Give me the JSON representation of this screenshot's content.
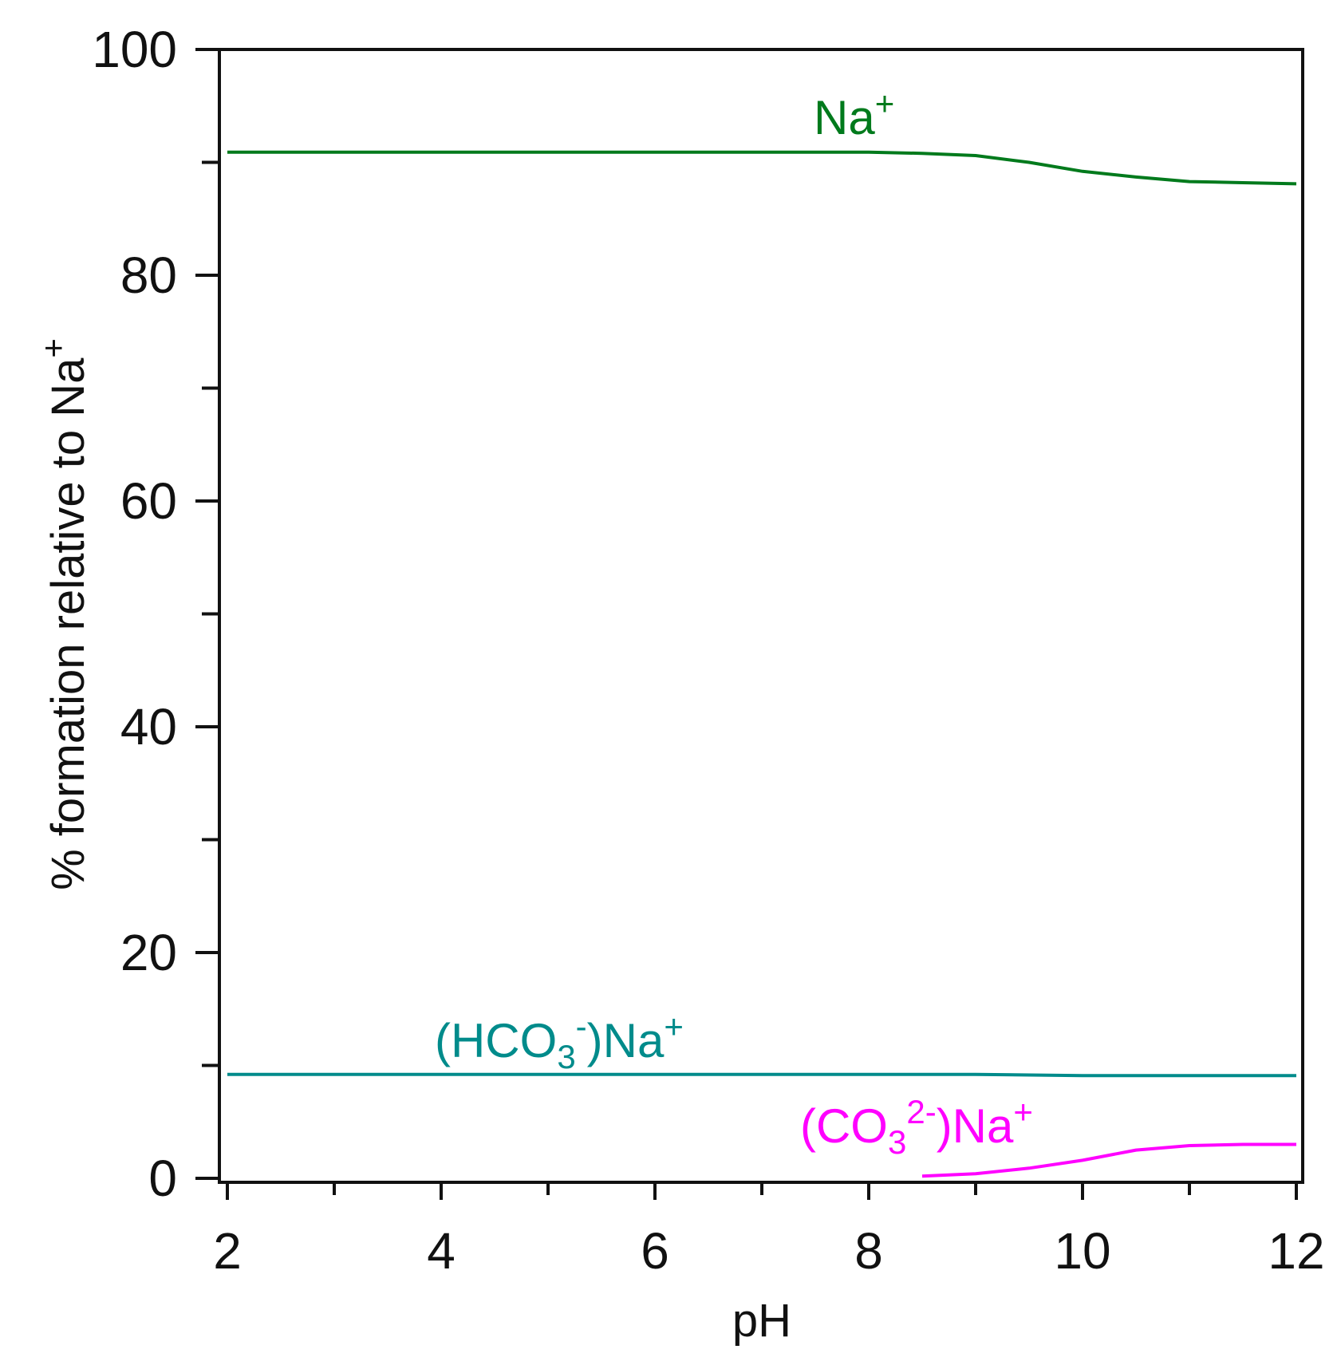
{
  "chart_data": {
    "type": "line",
    "title": "",
    "xlabel": "pH",
    "ylabel": {
      "text": "% formation relative to Na",
      "sup": "+"
    },
    "xlim": [
      2,
      12
    ],
    "ylim": [
      0,
      100
    ],
    "x_major_ticks": [
      2,
      4,
      6,
      8,
      10,
      12
    ],
    "x_tick_labels": [
      "2",
      "4",
      "6",
      "8",
      "10",
      "12"
    ],
    "x_minor_ticks": [
      3,
      5,
      7,
      9,
      11
    ],
    "y_major_ticks": [
      0,
      20,
      40,
      60,
      80,
      100
    ],
    "y_tick_labels": [
      "0",
      "20",
      "40",
      "60",
      "80",
      "100"
    ],
    "y_minor_ticks": [
      10,
      30,
      50,
      70,
      90
    ],
    "grid": false,
    "legend": "none (series labelled inline)",
    "series": [
      {
        "name": "Na+",
        "label": {
          "parts": [
            {
              "t": "Na"
            },
            {
              "t": "+",
              "sup": true
            }
          ]
        },
        "color": "#007a1c",
        "x": [
          2,
          3,
          4,
          5,
          6,
          7,
          7.5,
          8,
          8.5,
          9,
          9.5,
          10,
          10.5,
          11,
          11.5,
          12
        ],
        "y": [
          90.9,
          90.9,
          90.9,
          90.9,
          90.9,
          90.9,
          90.9,
          90.9,
          90.8,
          90.6,
          90.0,
          89.2,
          88.7,
          88.3,
          88.2,
          88.1
        ]
      },
      {
        "name": "(HCO3-)Na+",
        "label": {
          "parts": [
            {
              "t": "(HCO"
            },
            {
              "t": "3",
              "sub": true
            },
            {
              "t": "-",
              "sup": true
            },
            {
              "t": ")Na"
            },
            {
              "t": "+",
              "sup": true
            }
          ]
        },
        "color": "#008b8b",
        "x": [
          2,
          3,
          4,
          5,
          6,
          7,
          8,
          9,
          10,
          11,
          12
        ],
        "y": [
          9.2,
          9.2,
          9.2,
          9.2,
          9.2,
          9.2,
          9.2,
          9.2,
          9.1,
          9.1,
          9.1
        ]
      },
      {
        "name": "(CO32-)Na+",
        "label": {
          "parts": [
            {
              "t": "(CO"
            },
            {
              "t": "3",
              "sub": true
            },
            {
              "t": "2-",
              "sup": true
            },
            {
              "t": ")Na"
            },
            {
              "t": "+",
              "sup": true
            }
          ]
        },
        "color": "#ff00ff",
        "x": [
          8.5,
          9,
          9.5,
          10,
          10.5,
          11,
          11.5,
          12
        ],
        "y": [
          0.2,
          0.4,
          0.9,
          1.6,
          2.5,
          2.9,
          3.0,
          3.0
        ]
      }
    ]
  }
}
